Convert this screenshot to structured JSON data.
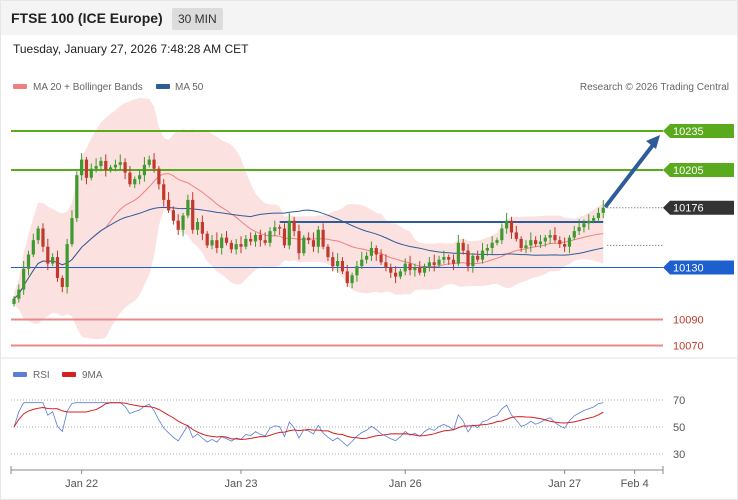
{
  "header": {
    "title": "FTSE 100 (ICE Europe)",
    "interval": "30 MIN",
    "timestamp": "Tuesday, January 27, 2026 7:48:28 AM CET",
    "credit": "Research © 2026 Trading Central"
  },
  "colors": {
    "up": "#3c9a2e",
    "down": "#c0392b",
    "bands": "#f9c8c8",
    "ma20": "#f08080",
    "ma50": "#2e5c99",
    "resistance": "#5aaa1e",
    "support_blue": "#1e5fcf",
    "support_red": "#e88a8a",
    "rsi": "#5b7fd6",
    "rsi_ma": "#d42020"
  },
  "chart_data": [
    {
      "type": "candlestick",
      "title": "",
      "legend": [
        "MA 20 + Bollinger Bands",
        "MA 50"
      ],
      "legend_position": "top-left",
      "x_ticks": [
        "Jan 22",
        "Jan 23",
        "Jan 26",
        "Jan 27",
        "Feb 4"
      ],
      "ylim": [
        10060,
        10245
      ],
      "price_levels": [
        {
          "value": 10235,
          "label": "10235",
          "kind": "resistance"
        },
        {
          "value": 10205,
          "label": "10205",
          "kind": "resistance"
        },
        {
          "value": 10176,
          "label": "10176",
          "kind": "last"
        },
        {
          "value": 10130,
          "label": "10130",
          "kind": "pivot"
        },
        {
          "value": 10090,
          "label": "10090",
          "kind": "support"
        },
        {
          "value": 10070,
          "label": "10070",
          "kind": "support"
        }
      ],
      "horizontal_line": 10165,
      "arrow": {
        "from": 10176,
        "to": 10235,
        "direction": "up"
      },
      "close": [
        10106,
        10113,
        10129,
        10140,
        10151,
        10160,
        10146,
        10133,
        10138,
        10122,
        10115,
        10148,
        10168,
        10201,
        10213,
        10199,
        10206,
        10208,
        10212,
        10205,
        10207,
        10209,
        10211,
        10203,
        10194,
        10198,
        10201,
        10209,
        10213,
        10206,
        10194,
        10182,
        10174,
        10166,
        10159,
        10170,
        10182,
        10159,
        10165,
        10156,
        10147,
        10151,
        10145,
        10153,
        10149,
        10144,
        10148,
        10146,
        10152,
        10150,
        10155,
        10151,
        10149,
        10158,
        10161,
        10160,
        10147,
        10166,
        10158,
        10141,
        10153,
        10151,
        10146,
        10159,
        10146,
        10138,
        10131,
        10135,
        10127,
        10118,
        10124,
        10131,
        10136,
        10139,
        10145,
        10140,
        10134,
        10130,
        10126,
        10123,
        10127,
        10133,
        10128,
        10130,
        10126,
        10131,
        10134,
        10132,
        10136,
        10138,
        10136,
        10133,
        10149,
        10143,
        10131,
        10139,
        10136,
        10143,
        10145,
        10149,
        10151,
        10160,
        10166,
        10157,
        10152,
        10145,
        10147,
        10151,
        10148,
        10150,
        10153,
        10155,
        10151,
        10148,
        10146,
        10153,
        10158,
        10161,
        10164,
        10166,
        10168,
        10172,
        10176
      ],
      "rsi": {
        "ylim": [
          30,
          70
        ],
        "levels": [
          70,
          50,
          30
        ],
        "series": [
          "RSI",
          "9MA"
        ]
      }
    }
  ]
}
